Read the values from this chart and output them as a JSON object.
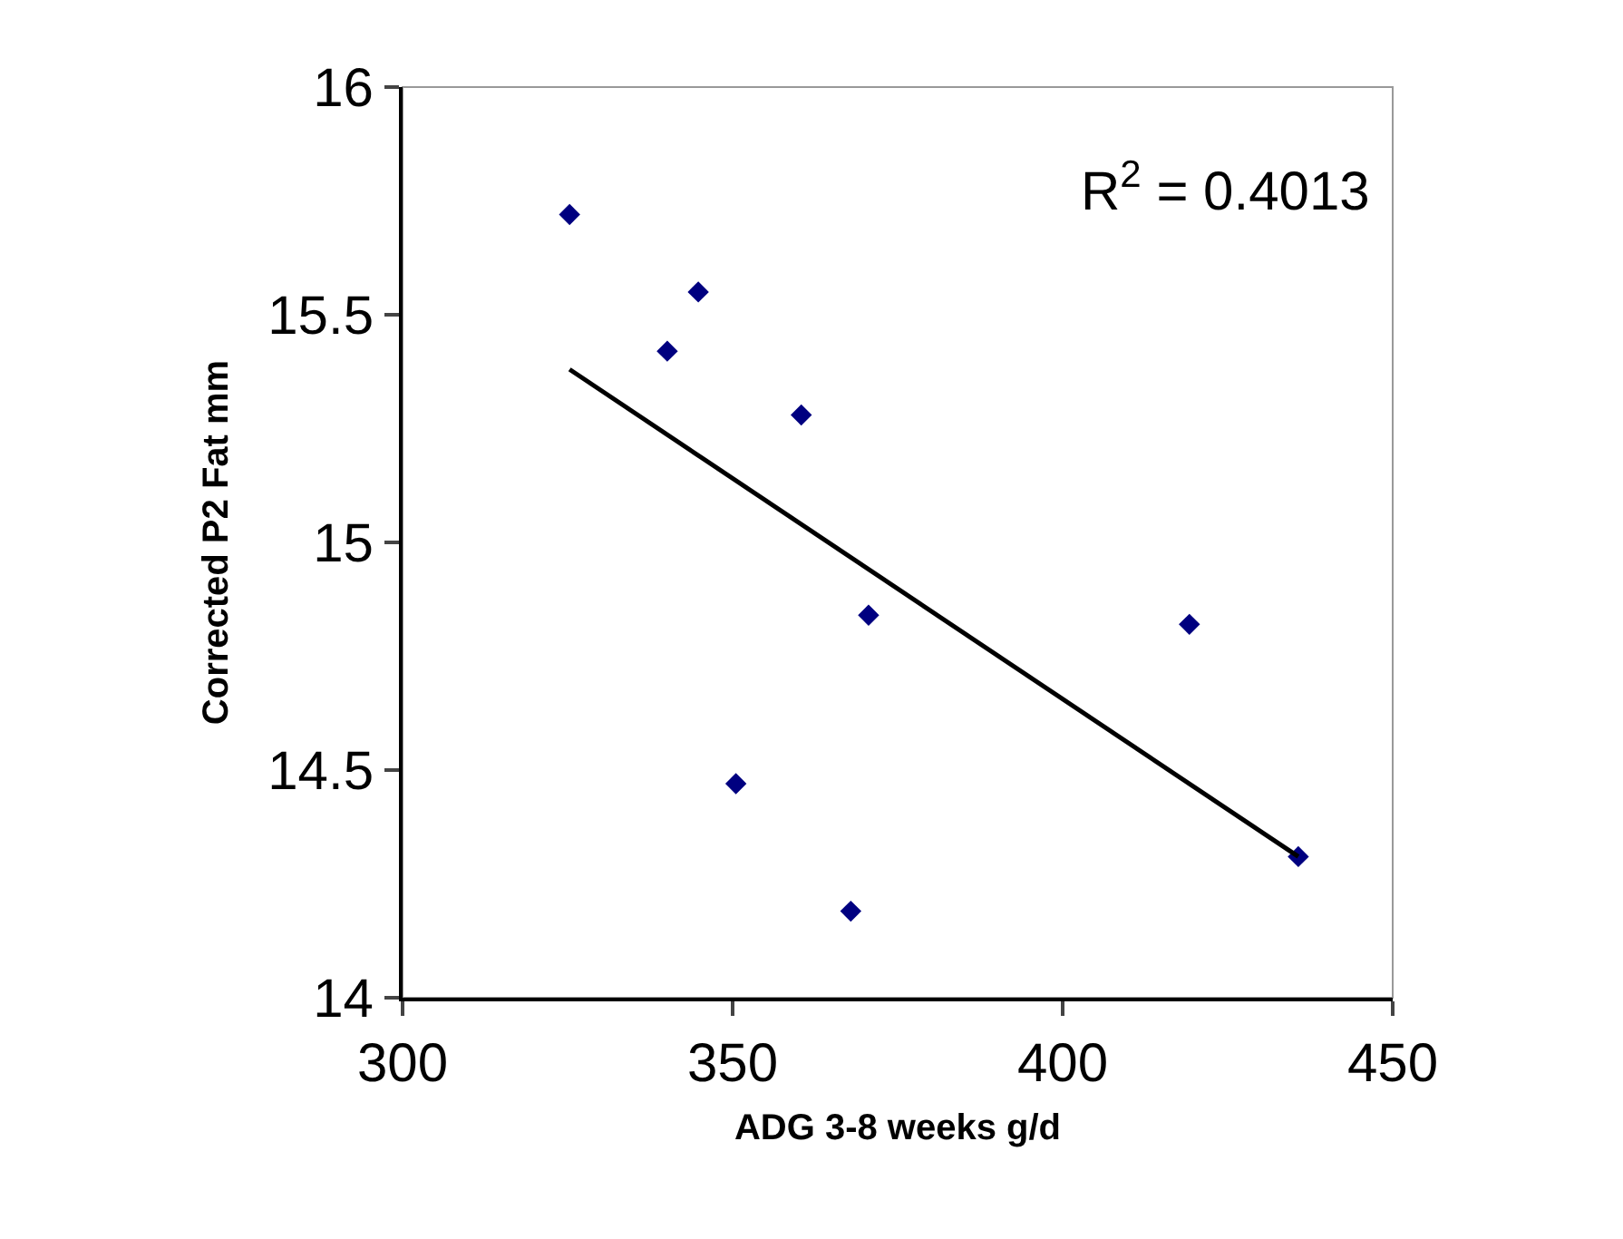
{
  "chart_data": {
    "type": "scatter",
    "xlabel": "ADG 3-8 weeks g/d",
    "ylabel": "Corrected P2 Fat mm",
    "annotations": [
      "R$^{2}$ = 0.4013"
    ],
    "series": [
      {
        "color": "#000080",
        "marker": "diamond",
        "x": [
          325.3,
          340.1,
          344.8,
          360.4,
          370.6,
          350.5,
          367.9,
          419.2,
          435.7
        ],
        "values": [
          15.72,
          15.42,
          15.55,
          15.28,
          14.84,
          14.47,
          14.19,
          14.82,
          14.31
        ]
      },
      {
        "type": "line",
        "color": "#000000",
        "marker": "none",
        "x": [
          325.3,
          435.7
        ],
        "values": [
          15.38,
          14.31
        ]
      }
    ],
    "xlim": [
      300,
      450
    ],
    "xticks": [
      300,
      350,
      400,
      450
    ],
    "ylim": [
      14,
      16
    ],
    "yticks": [
      14,
      14.5,
      15,
      15.5,
      16
    ],
    "grid": false
  }
}
